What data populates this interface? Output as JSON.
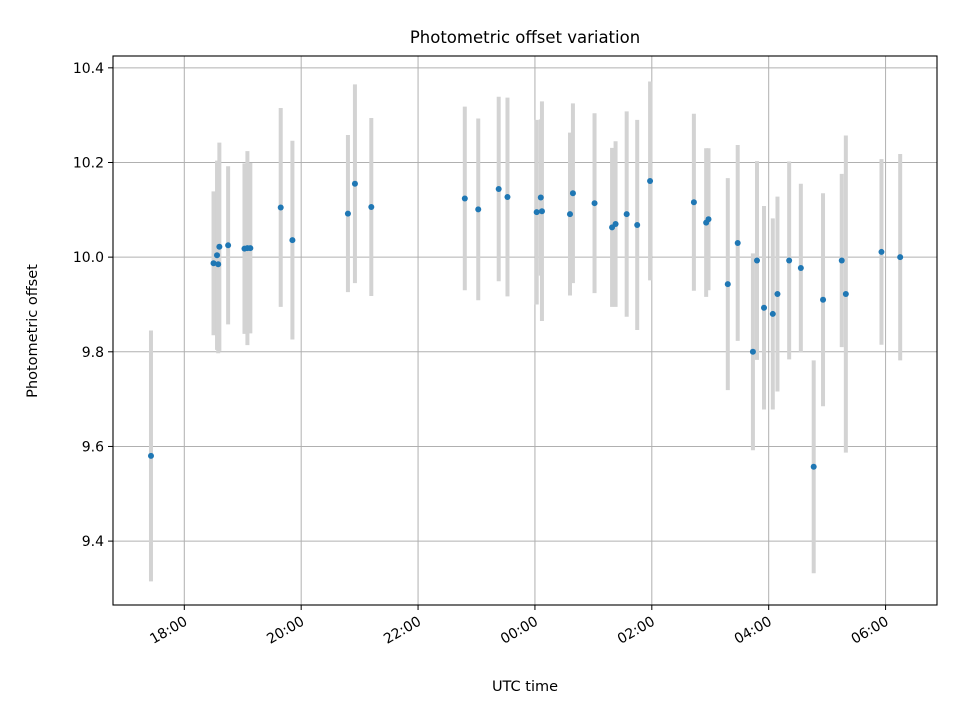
{
  "chart_data": {
    "type": "scatter",
    "title": "Photometric offset variation",
    "xlabel": "UTC time",
    "ylabel": "Photometric offset",
    "x_unit": "hours (UTC, continuing past midnight)",
    "x_tick_values": [
      18,
      20,
      22,
      24,
      26,
      28,
      30
    ],
    "x_tick_labels": [
      "18:00",
      "20:00",
      "22:00",
      "00:00",
      "02:00",
      "04:00",
      "06:00"
    ],
    "y_tick_values": [
      9.4,
      9.6,
      9.8,
      10.0,
      10.2,
      10.4
    ],
    "y_tick_labels": [
      "9.4",
      "9.6",
      "9.8",
      "10.0",
      "10.2",
      "10.4"
    ],
    "xlim": [
      16.78,
      30.88
    ],
    "ylim": [
      9.265,
      10.425
    ],
    "grid": true,
    "colors": {
      "point": "#1f77b4",
      "error_bar": "#d3d3d3"
    },
    "series": [
      {
        "points": [
          {
            "x": 17.43,
            "y": 9.58,
            "err": 0.265
          },
          {
            "x": 18.5,
            "y": 9.987,
            "err": 0.152
          },
          {
            "x": 18.56,
            "y": 10.004,
            "err": 0.2
          },
          {
            "x": 18.58,
            "y": 9.985,
            "err": 0.188
          },
          {
            "x": 18.6,
            "y": 10.022,
            "err": 0.22
          },
          {
            "x": 18.75,
            "y": 10.025,
            "err": 0.167
          },
          {
            "x": 19.03,
            "y": 10.018,
            "err": 0.18
          },
          {
            "x": 19.08,
            "y": 10.019,
            "err": 0.205
          },
          {
            "x": 19.13,
            "y": 10.019,
            "err": 0.18
          },
          {
            "x": 19.65,
            "y": 10.105,
            "err": 0.21
          },
          {
            "x": 19.85,
            "y": 10.036,
            "err": 0.21
          },
          {
            "x": 20.8,
            "y": 10.092,
            "err": 0.166
          },
          {
            "x": 20.92,
            "y": 10.155,
            "err": 0.21
          },
          {
            "x": 21.2,
            "y": 10.106,
            "err": 0.188
          },
          {
            "x": 22.8,
            "y": 10.124,
            "err": 0.194
          },
          {
            "x": 23.03,
            "y": 10.101,
            "err": 0.192
          },
          {
            "x": 23.38,
            "y": 10.144,
            "err": 0.195
          },
          {
            "x": 23.53,
            "y": 10.127,
            "err": 0.21
          },
          {
            "x": 24.03,
            "y": 10.095,
            "err": 0.195
          },
          {
            "x": 24.1,
            "y": 10.126,
            "err": 0.165
          },
          {
            "x": 24.12,
            "y": 10.097,
            "err": 0.232
          },
          {
            "x": 24.6,
            "y": 10.091,
            "err": 0.172
          },
          {
            "x": 24.65,
            "y": 10.135,
            "err": 0.19
          },
          {
            "x": 25.02,
            "y": 10.114,
            "err": 0.19
          },
          {
            "x": 25.32,
            "y": 10.063,
            "err": 0.168
          },
          {
            "x": 25.38,
            "y": 10.07,
            "err": 0.175
          },
          {
            "x": 25.57,
            "y": 10.091,
            "err": 0.217
          },
          {
            "x": 25.75,
            "y": 10.068,
            "err": 0.222
          },
          {
            "x": 25.97,
            "y": 10.161,
            "err": 0.21
          },
          {
            "x": 26.72,
            "y": 10.116,
            "err": 0.187
          },
          {
            "x": 26.93,
            "y": 10.073,
            "err": 0.157
          },
          {
            "x": 26.97,
            "y": 10.08,
            "err": 0.15
          },
          {
            "x": 27.3,
            "y": 9.943,
            "err": 0.224
          },
          {
            "x": 27.47,
            "y": 10.03,
            "err": 0.207
          },
          {
            "x": 27.73,
            "y": 9.8,
            "err": 0.208
          },
          {
            "x": 27.8,
            "y": 9.993,
            "err": 0.21
          },
          {
            "x": 27.92,
            "y": 9.893,
            "err": 0.215
          },
          {
            "x": 28.07,
            "y": 9.88,
            "err": 0.202
          },
          {
            "x": 28.15,
            "y": 9.922,
            "err": 0.206
          },
          {
            "x": 28.35,
            "y": 9.993,
            "err": 0.209
          },
          {
            "x": 28.55,
            "y": 9.977,
            "err": 0.178
          },
          {
            "x": 28.77,
            "y": 9.557,
            "err": 0.225
          },
          {
            "x": 28.93,
            "y": 9.91,
            "err": 0.225
          },
          {
            "x": 29.25,
            "y": 9.993,
            "err": 0.183
          },
          {
            "x": 29.32,
            "y": 9.922,
            "err": 0.335
          },
          {
            "x": 29.93,
            "y": 10.011,
            "err": 0.196
          },
          {
            "x": 30.25,
            "y": 10.0,
            "err": 0.218
          }
        ]
      }
    ]
  }
}
